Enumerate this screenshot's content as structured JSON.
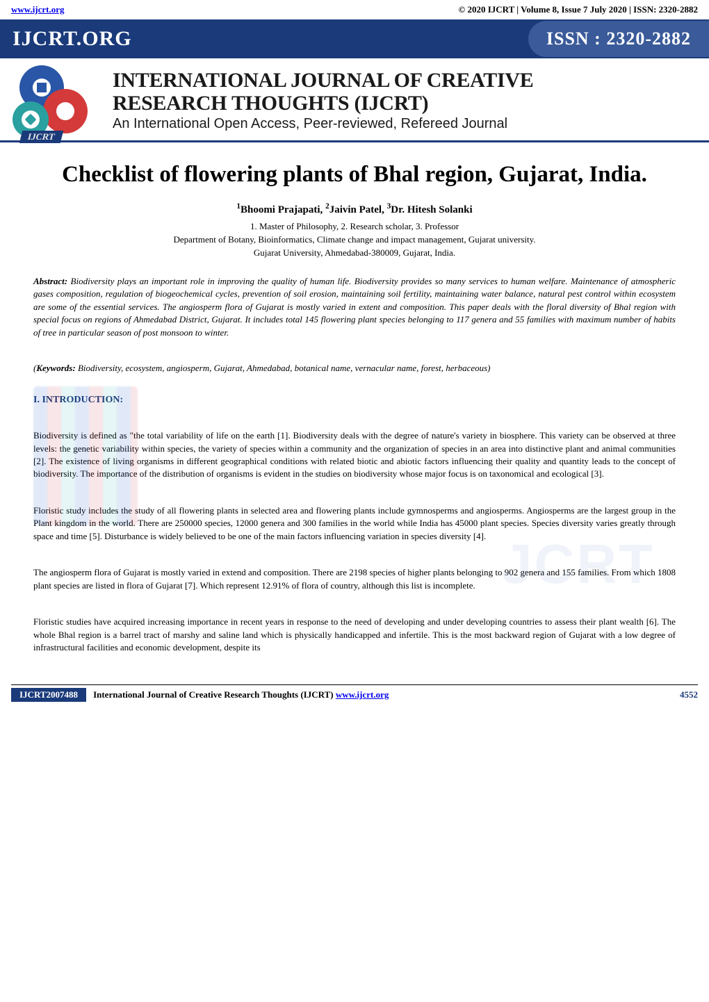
{
  "topbar": {
    "site_url": "www.ijcrt.org",
    "right_text": "© 2020 IJCRT | Volume 8, Issue 7 July 2020 | ISSN: 2320-2882"
  },
  "banner": {
    "left": "IJCRT.ORG",
    "right": "ISSN : 2320-2882"
  },
  "masthead": {
    "ribbon": "IJCRT",
    "line1": "INTERNATIONAL JOURNAL OF CREATIVE",
    "line2": "RESEARCH THOUGHTS (IJCRT)",
    "tagline": "An International Open Access, Peer-reviewed, Refereed Journal",
    "logo_colors": {
      "gear1": "#2956a6",
      "gear2": "#d43a3a",
      "gear3": "#2aa0a0"
    }
  },
  "paper": {
    "title": "Checklist of flowering plants of Bhal region, Gujarat, India.",
    "authors_html": "¹Bhoomi Prajapati, ²Jaivin Patel, ³Dr. Hitesh Solanki",
    "affil1": "1. Master of Philosophy, 2. Research scholar, 3. Professor",
    "affil2": "Department of Botany, Bioinformatics, Climate change and impact management, Gujarat university.",
    "affil3": "Gujarat University, Ahmedabad-380009, Gujarat, India."
  },
  "abstract": {
    "label": "Abstract:",
    "text": " Biodiversity plays an important role in improving the quality of human life. Biodiversity provides so many services to human welfare. Maintenance of atmospheric gases composition, regulation of biogeochemical cycles, prevention of soil erosion, maintaining soil fertility, maintaining water balance, natural pest control within ecosystem are some of the essential services. The angiosperm flora of Gujarat is mostly varied in extent and composition. This paper deals with the floral diversity of Bhal region with special focus on regions of Ahmedabad District, Gujarat. It includes total 145 flowering plant species belonging to 117 genera and 55 families with maximum number of habits of tree in particular season of post monsoon to winter."
  },
  "keywords": {
    "prefix": "(",
    "label": "Keywords:",
    "text": " Biodiversity, ecosystem, angiosperm, Gujarat, Ahmedabad, botanical name, vernacular name, forest, herbaceous)"
  },
  "sections": {
    "intro_heading": "I. INTRODUCTION:"
  },
  "paras": {
    "p1": "Biodiversity is defined as \"the total variability of life on the earth [1]. Biodiversity deals with the degree of nature's variety in biosphere. This variety can be observed at three levels: the genetic variability within species, the variety of species within a community and the organization of species in an area into distinctive plant and animal communities [2]. The existence of living organisms in different geographical conditions with related biotic and abiotic factors influencing their quality and quantity leads to the concept of biodiversity. The importance of the distribution of organisms is evident in the studies on biodiversity whose major focus is on taxonomical and ecological [3].",
    "p2": "Floristic study includes the study of all flowering plants in selected area and flowering plants include gymnosperms and angiosperms. Angiosperms are the largest group in the Plant kingdom in the world. There are 250000 species, 12000 genera and 300 families in the world while India has 45000 plant species. Species diversity varies greatly through space and time [5]. Disturbance is widely believed to be one of the main factors influencing variation in species diversity [4].",
    "p3": "The angiosperm flora of Gujarat is mostly varied in extend and composition. There are 2198 species of higher plants belonging to 902 genera and 155 families. From which 1808 plant species are listed in flora of Gujarat [7]. Which represent 12.91% of flora of country, although this list is incomplete.",
    "p4": "Floristic studies have acquired increasing importance in recent years in response to the need of developing and under developing countries to assess their plant wealth [6]. The whole Bhal region is a barrel tract of marshy and saline land which is physically handicapped and infertile. This is the most backward region of Gujarat with a low degree of infrastructural facilities and economic development, despite its"
  },
  "watermark": {
    "text": "JCRT"
  },
  "footer": {
    "left_box": "IJCRT2007488",
    "mid_text": "International Journal of Creative Research Thoughts (IJCRT) ",
    "link": "www.ijcrt.org",
    "page": "4552"
  },
  "colors": {
    "brand_blue": "#1a3a7a",
    "banner_blue": "#3a5a9a",
    "link": "#0000ee"
  }
}
